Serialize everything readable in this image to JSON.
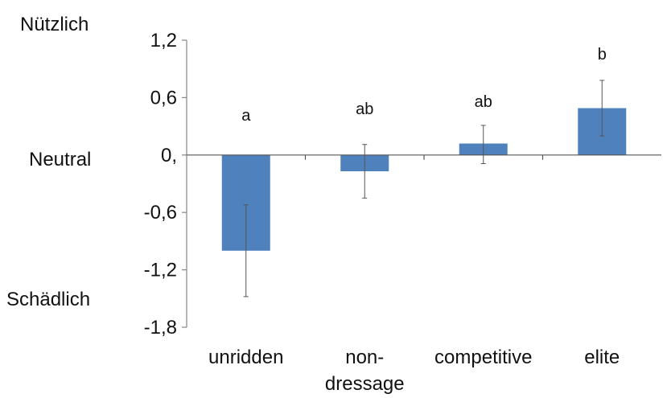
{
  "chart_data": {
    "type": "bar",
    "title": "",
    "xlabel": "",
    "ylabel": "",
    "categories": [
      {
        "lines": [
          "unridden"
        ]
      },
      {
        "lines": [
          "non-",
          "dressage"
        ]
      },
      {
        "lines": [
          "competitive"
        ]
      },
      {
        "lines": [
          "elite"
        ]
      }
    ],
    "values": [
      -1.0,
      -0.17,
      0.12,
      0.49
    ],
    "error_bars": [
      {
        "low": -1.48,
        "high": -0.52
      },
      {
        "low": -0.45,
        "high": 0.11
      },
      {
        "low": -0.09,
        "high": 0.31
      },
      {
        "low": 0.2,
        "high": 0.78
      }
    ],
    "significance_labels": [
      "a",
      "ab",
      "ab",
      "b"
    ],
    "y_ticks": [
      {
        "value": 1.2,
        "label": "1,2"
      },
      {
        "value": 0.6,
        "label": "0,6"
      },
      {
        "value": 0,
        "label": "0,"
      },
      {
        "value": -0.6,
        "label": "-0,6"
      },
      {
        "value": -1.2,
        "label": "-1,2"
      },
      {
        "value": -1.8,
        "label": "-1,8"
      }
    ],
    "ylim": [
      -1.8,
      1.2
    ],
    "side_labels": {
      "top": "Nützlich",
      "middle": "Neutral",
      "bottom": "Schädlich"
    },
    "bar_color": "#4f81bd",
    "grid": false,
    "legend": "none"
  }
}
